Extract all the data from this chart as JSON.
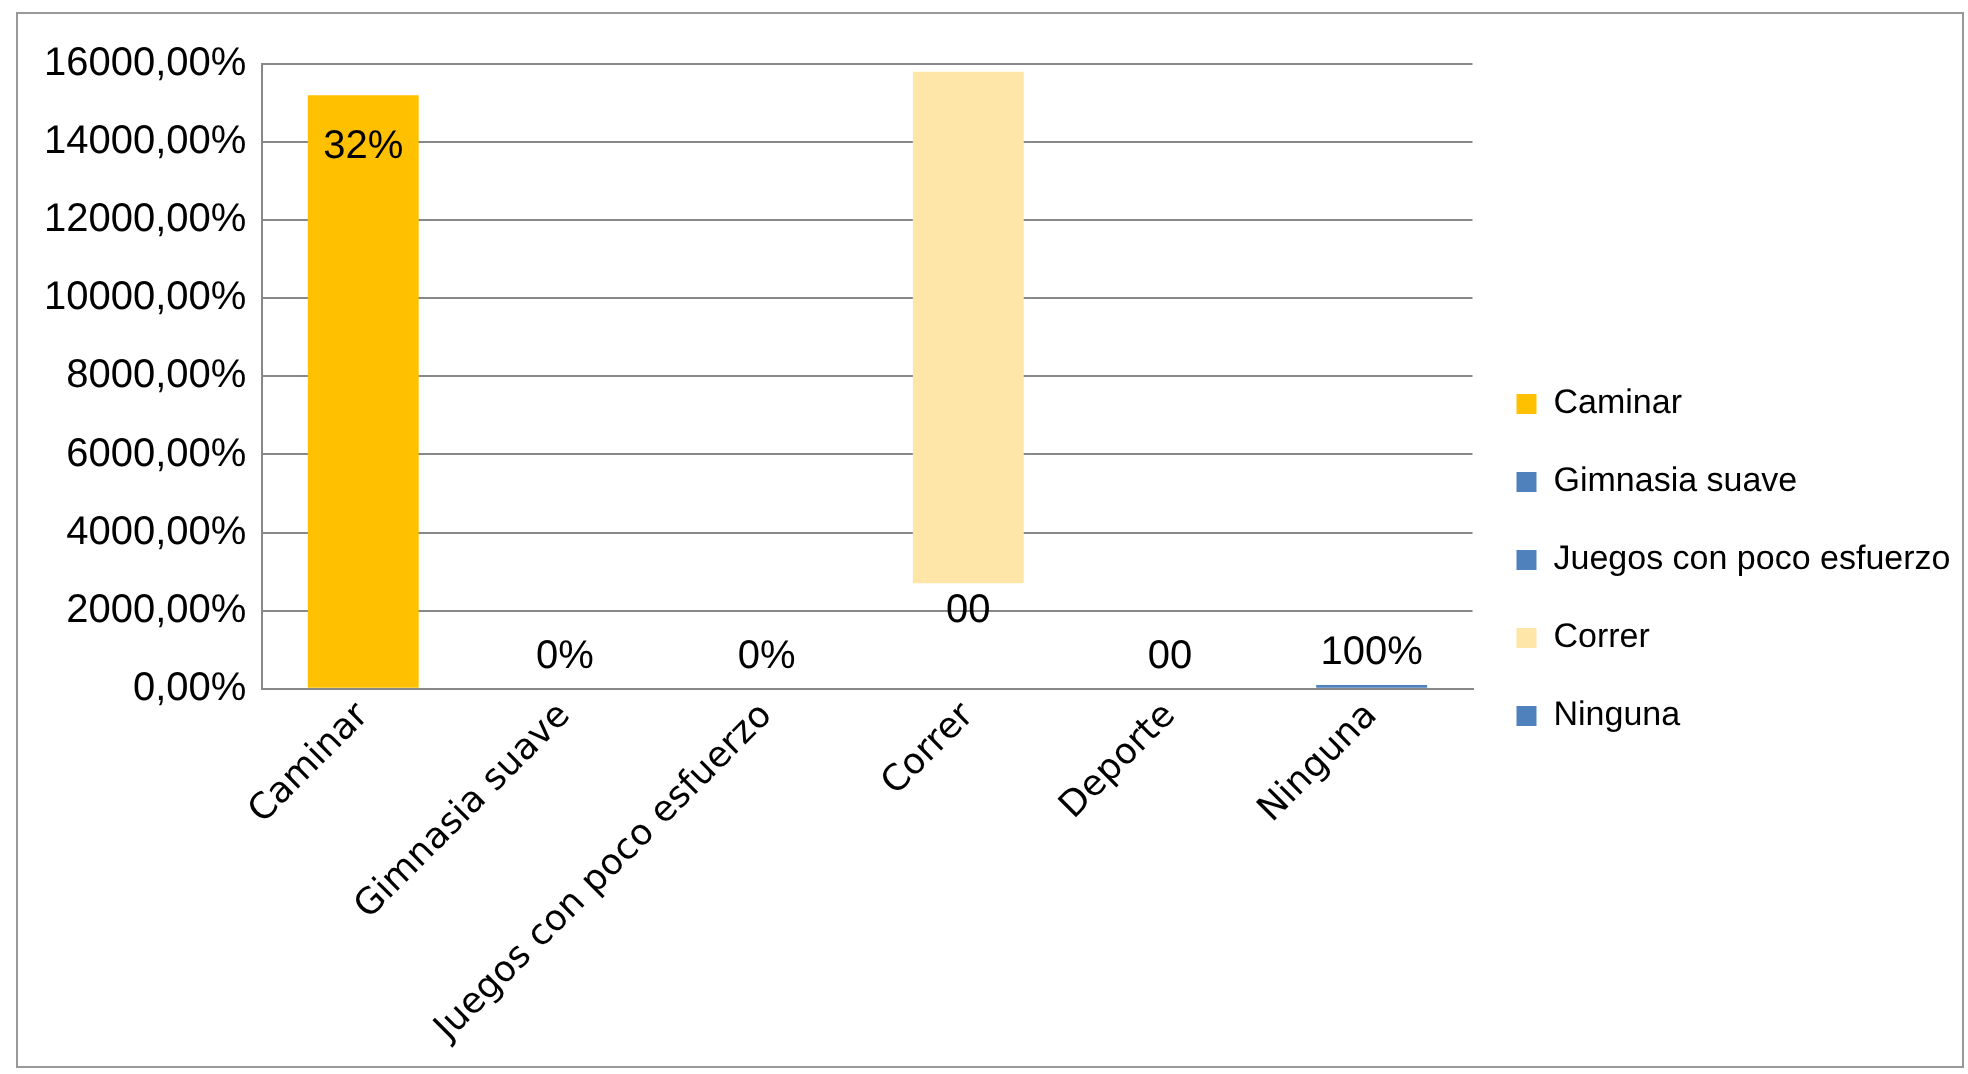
{
  "chart_data": {
    "type": "bar",
    "categories": [
      "Caminar",
      "Gimnasia suave",
      "Juegos con poco esfuerzo",
      "Correr",
      "Deporte",
      "Ninguna"
    ],
    "series": [
      {
        "name": "Caminar",
        "color": "#ffc000",
        "values": [
          15200,
          null,
          null,
          null,
          null,
          null
        ]
      },
      {
        "name": "Gimnasia suave",
        "color": "#4f81bd",
        "values": [
          null,
          0,
          null,
          null,
          null,
          null
        ]
      },
      {
        "name": "Juegos con poco esfuerzo",
        "color": "#4f81bd",
        "values": [
          null,
          null,
          0,
          null,
          null,
          null
        ]
      },
      {
        "name": "Correr",
        "color": "#fde6a8",
        "values": [
          null,
          null,
          null,
          13100,
          null,
          null
        ],
        "base": [
          null,
          null,
          null,
          2700,
          null,
          null
        ]
      },
      {
        "name": "Ninguna",
        "color": "#4f81bd",
        "values": [
          null,
          null,
          null,
          null,
          null,
          100
        ]
      }
    ],
    "ylim": [
      0,
      16000
    ],
    "yticks": [
      {
        "value": 0,
        "label": "0,00%"
      },
      {
        "value": 2000,
        "label": "2000,00%"
      },
      {
        "value": 4000,
        "label": "4000,00%"
      },
      {
        "value": 6000,
        "label": "6000,00%"
      },
      {
        "value": 8000,
        "label": "8000,00%"
      },
      {
        "value": 10000,
        "label": "10000,00%"
      },
      {
        "value": 12000,
        "label": "12000,00%"
      },
      {
        "value": 14000,
        "label": "14000,00%"
      },
      {
        "value": 16000,
        "label": "16000,00%"
      }
    ],
    "annotations": [
      "32%",
      "0%",
      "0%",
      "00",
      "00",
      "100%"
    ],
    "grid": "y",
    "legend": "right"
  }
}
